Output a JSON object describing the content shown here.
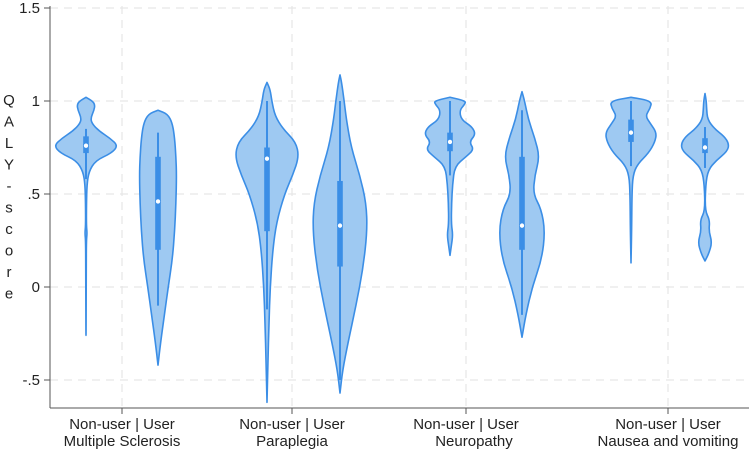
{
  "chart_data": {
    "type": "violin",
    "title": "",
    "xlabel": "",
    "ylabel": "QALY-score",
    "ylim": [
      -0.65,
      1.6
    ],
    "yticks": [
      {
        "value": 1.5,
        "label": "1.5"
      },
      {
        "value": 1.0,
        "label": "1"
      },
      {
        "value": 0.5,
        "label": ".5"
      },
      {
        "value": 0.0,
        "label": "0"
      },
      {
        "value": -0.5,
        "label": "-.5"
      }
    ],
    "grid": true,
    "colors": {
      "fill": "#9ec9f2",
      "outline": "#3b8ee6",
      "box": "#3b8ee6",
      "grid": "#e6e6e6"
    },
    "groups": [
      {
        "name": "Multiple Sclerosis",
        "sublabel": "Non-user | User",
        "violins": [
          {
            "name": "Non-user",
            "median": 0.76,
            "q1": 0.72,
            "q3": 0.81,
            "whisker_low": 0.58,
            "whisker_high": 0.85,
            "profile": [
              [
                -0.26,
                0.002
              ],
              [
                -0.1,
                0.005
              ],
              [
                0.1,
                0.008
              ],
              [
                0.25,
                0.012
              ],
              [
                0.29,
                0.035
              ],
              [
                0.33,
                0.012
              ],
              [
                0.45,
                0.015
              ],
              [
                0.55,
                0.03
              ],
              [
                0.62,
                0.09
              ],
              [
                0.68,
                0.3
              ],
              [
                0.72,
                0.8
              ],
              [
                0.76,
                1.0
              ],
              [
                0.8,
                0.75
              ],
              [
                0.84,
                0.4
              ],
              [
                0.88,
                0.18
              ],
              [
                0.91,
                0.15
              ],
              [
                0.95,
                0.25
              ],
              [
                0.98,
                0.28
              ],
              [
                1.0,
                0.2
              ],
              [
                1.02,
                0.0
              ]
            ]
          },
          {
            "name": "User",
            "median": 0.46,
            "q1": 0.2,
            "q3": 0.7,
            "whisker_low": -0.1,
            "whisker_high": 0.83,
            "profile": [
              [
                -0.42,
                0.0
              ],
              [
                -0.3,
                0.08
              ],
              [
                -0.15,
                0.2
              ],
              [
                0.0,
                0.32
              ],
              [
                0.15,
                0.45
              ],
              [
                0.3,
                0.52
              ],
              [
                0.45,
                0.56
              ],
              [
                0.6,
                0.58
              ],
              [
                0.7,
                0.56
              ],
              [
                0.8,
                0.52
              ],
              [
                0.88,
                0.45
              ],
              [
                0.93,
                0.3
              ],
              [
                0.95,
                0.0
              ]
            ]
          }
        ]
      },
      {
        "name": "Paraplegia",
        "sublabel": "Non-user | User",
        "violins": [
          {
            "name": "Non-user",
            "median": 0.69,
            "q1": 0.3,
            "q3": 0.75,
            "whisker_low": -0.12,
            "whisker_high": 1.0,
            "profile": [
              [
                -0.62,
                0.0
              ],
              [
                -0.4,
                0.03
              ],
              [
                -0.2,
                0.06
              ],
              [
                0.0,
                0.1
              ],
              [
                0.2,
                0.18
              ],
              [
                0.35,
                0.3
              ],
              [
                0.5,
                0.55
              ],
              [
                0.6,
                0.8
              ],
              [
                0.7,
                1.0
              ],
              [
                0.78,
                0.9
              ],
              [
                0.85,
                0.5
              ],
              [
                0.92,
                0.25
              ],
              [
                1.0,
                0.15
              ],
              [
                1.06,
                0.1
              ],
              [
                1.1,
                0.0
              ]
            ]
          },
          {
            "name": "User",
            "median": 0.33,
            "q1": 0.11,
            "q3": 0.57,
            "whisker_low": -0.5,
            "whisker_high": 1.0,
            "profile": [
              [
                -0.57,
                0.0
              ],
              [
                -0.45,
                0.08
              ],
              [
                -0.3,
                0.25
              ],
              [
                -0.1,
                0.5
              ],
              [
                0.1,
                0.72
              ],
              [
                0.3,
                0.85
              ],
              [
                0.45,
                0.82
              ],
              [
                0.6,
                0.62
              ],
              [
                0.75,
                0.35
              ],
              [
                0.9,
                0.2
              ],
              [
                1.0,
                0.13
              ],
              [
                1.1,
                0.05
              ],
              [
                1.14,
                0.0
              ]
            ]
          }
        ]
      },
      {
        "name": "Neuropathy",
        "sublabel": "Non-user | User",
        "violins": [
          {
            "name": "Non-user",
            "median": 0.78,
            "q1": 0.73,
            "q3": 0.83,
            "whisker_low": 0.6,
            "whisker_high": 1.0,
            "profile": [
              [
                0.17,
                0.0
              ],
              [
                0.22,
                0.04
              ],
              [
                0.28,
                0.09
              ],
              [
                0.34,
                0.04
              ],
              [
                0.45,
                0.05
              ],
              [
                0.55,
                0.08
              ],
              [
                0.65,
                0.15
              ],
              [
                0.7,
                0.5
              ],
              [
                0.74,
                0.75
              ],
              [
                0.78,
                0.6
              ],
              [
                0.82,
                0.8
              ],
              [
                0.86,
                0.7
              ],
              [
                0.9,
                0.35
              ],
              [
                0.95,
                0.3
              ],
              [
                0.98,
                0.45
              ],
              [
                1.0,
                0.5
              ],
              [
                1.02,
                0.0
              ]
            ]
          },
          {
            "name": "User",
            "median": 0.33,
            "q1": 0.2,
            "q3": 0.7,
            "whisker_low": -0.15,
            "whisker_high": 0.95,
            "profile": [
              [
                -0.27,
                0.0
              ],
              [
                -0.15,
                0.12
              ],
              [
                0.0,
                0.32
              ],
              [
                0.15,
                0.62
              ],
              [
                0.3,
                0.72
              ],
              [
                0.42,
                0.6
              ],
              [
                0.5,
                0.35
              ],
              [
                0.6,
                0.4
              ],
              [
                0.7,
                0.55
              ],
              [
                0.8,
                0.4
              ],
              [
                0.9,
                0.2
              ],
              [
                1.0,
                0.08
              ],
              [
                1.05,
                0.0
              ]
            ]
          }
        ]
      },
      {
        "name": "Nausea and vomiting",
        "sublabel": "Non-user | User",
        "violins": [
          {
            "name": "Non-user",
            "median": 0.83,
            "q1": 0.78,
            "q3": 0.9,
            "whisker_low": 0.65,
            "whisker_high": 1.0,
            "profile": [
              [
                0.13,
                0.0
              ],
              [
                0.3,
                0.02
              ],
              [
                0.5,
                0.03
              ],
              [
                0.6,
                0.06
              ],
              [
                0.66,
                0.2
              ],
              [
                0.72,
                0.55
              ],
              [
                0.78,
                0.75
              ],
              [
                0.83,
                0.8
              ],
              [
                0.88,
                0.6
              ],
              [
                0.92,
                0.45
              ],
              [
                0.96,
                0.6
              ],
              [
                1.0,
                0.65
              ],
              [
                1.02,
                0.0
              ]
            ]
          },
          {
            "name": "User",
            "median": 0.75,
            "q1": 0.72,
            "q3": 0.8,
            "whisker_low": 0.64,
            "whisker_high": 0.86,
            "profile": [
              [
                0.14,
                0.0
              ],
              [
                0.18,
                0.12
              ],
              [
                0.24,
                0.22
              ],
              [
                0.3,
                0.12
              ],
              [
                0.36,
                0.15
              ],
              [
                0.41,
                0.0
              ],
              [
                0.55,
                0.02
              ],
              [
                0.63,
                0.1
              ],
              [
                0.68,
                0.35
              ],
              [
                0.73,
                0.7
              ],
              [
                0.77,
                0.75
              ],
              [
                0.81,
                0.6
              ],
              [
                0.85,
                0.3
              ],
              [
                0.9,
                0.08
              ],
              [
                0.96,
                0.05
              ],
              [
                1.0,
                0.04
              ],
              [
                1.04,
                0.0
              ]
            ]
          }
        ]
      }
    ]
  }
}
